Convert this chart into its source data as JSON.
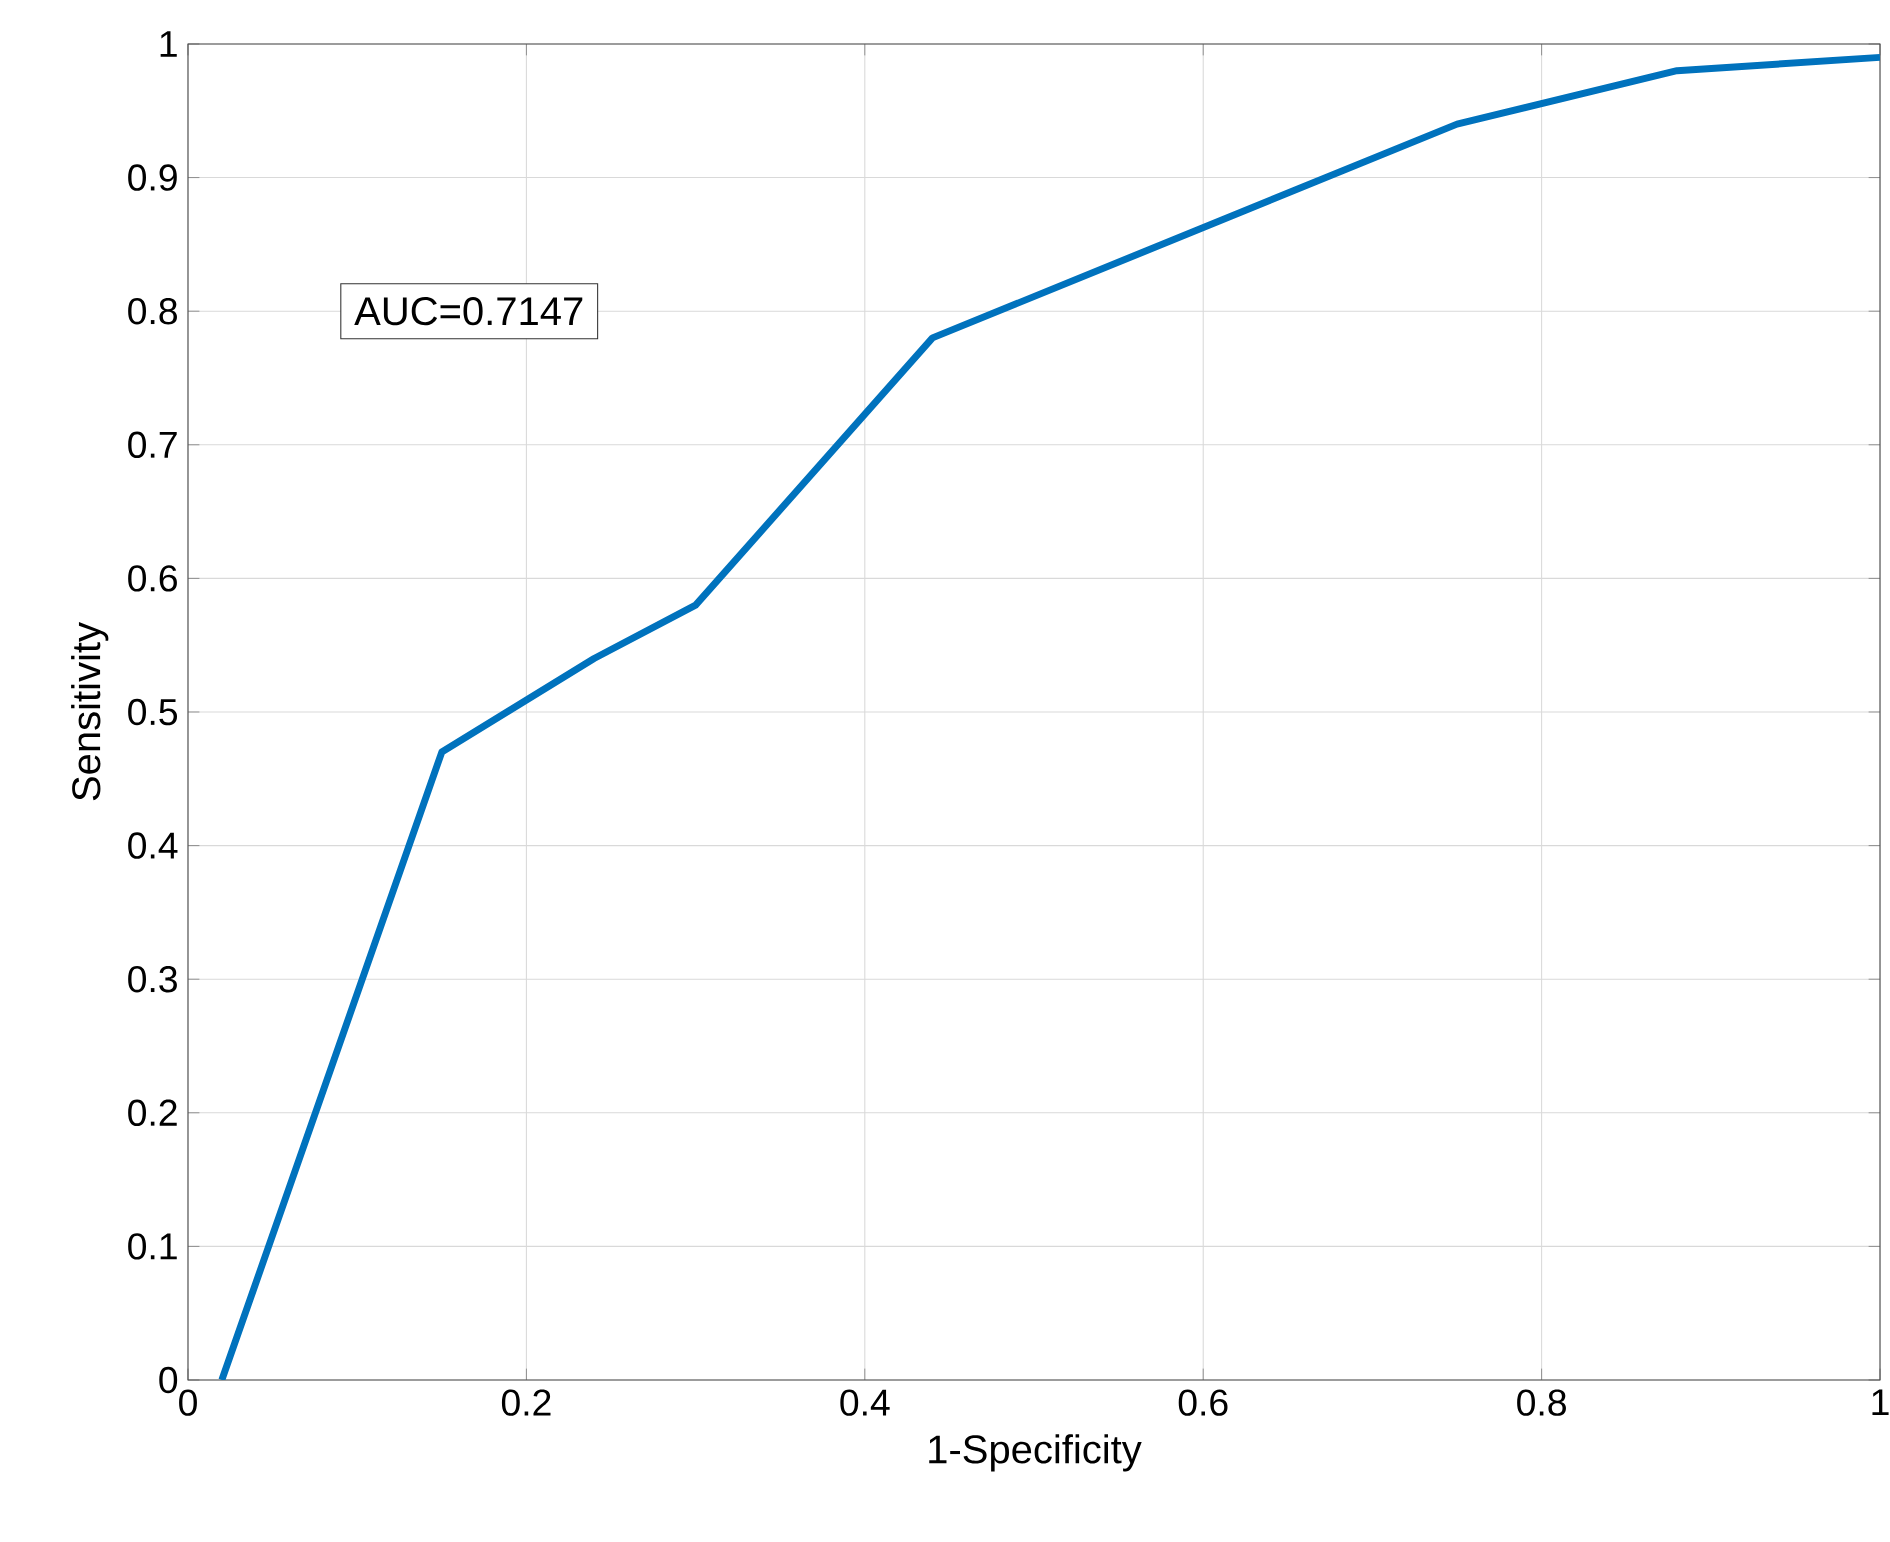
{
  "chart_data": {
    "type": "line",
    "xlabel": "1-Specificity",
    "ylabel": "Sensitivity",
    "x": [
      0.02,
      0.15,
      0.24,
      0.3,
      0.44,
      0.75,
      0.88,
      1.0
    ],
    "series": [
      {
        "color": "#0072bd",
        "values": [
          0,
          0.47,
          0.54,
          0.58,
          0.78,
          0.94,
          0.98,
          0.99
        ]
      }
    ],
    "xlim": [
      0,
      1
    ],
    "ylim": [
      0,
      1
    ],
    "xticks": [
      0,
      0.2,
      0.4,
      0.6,
      0.8,
      1
    ],
    "yticks": [
      0,
      0.1,
      0.2,
      0.3,
      0.4,
      0.5,
      0.6,
      0.7,
      0.8,
      0.9,
      1
    ],
    "grid": true,
    "annotations": [
      "AUC=0.7147"
    ]
  }
}
